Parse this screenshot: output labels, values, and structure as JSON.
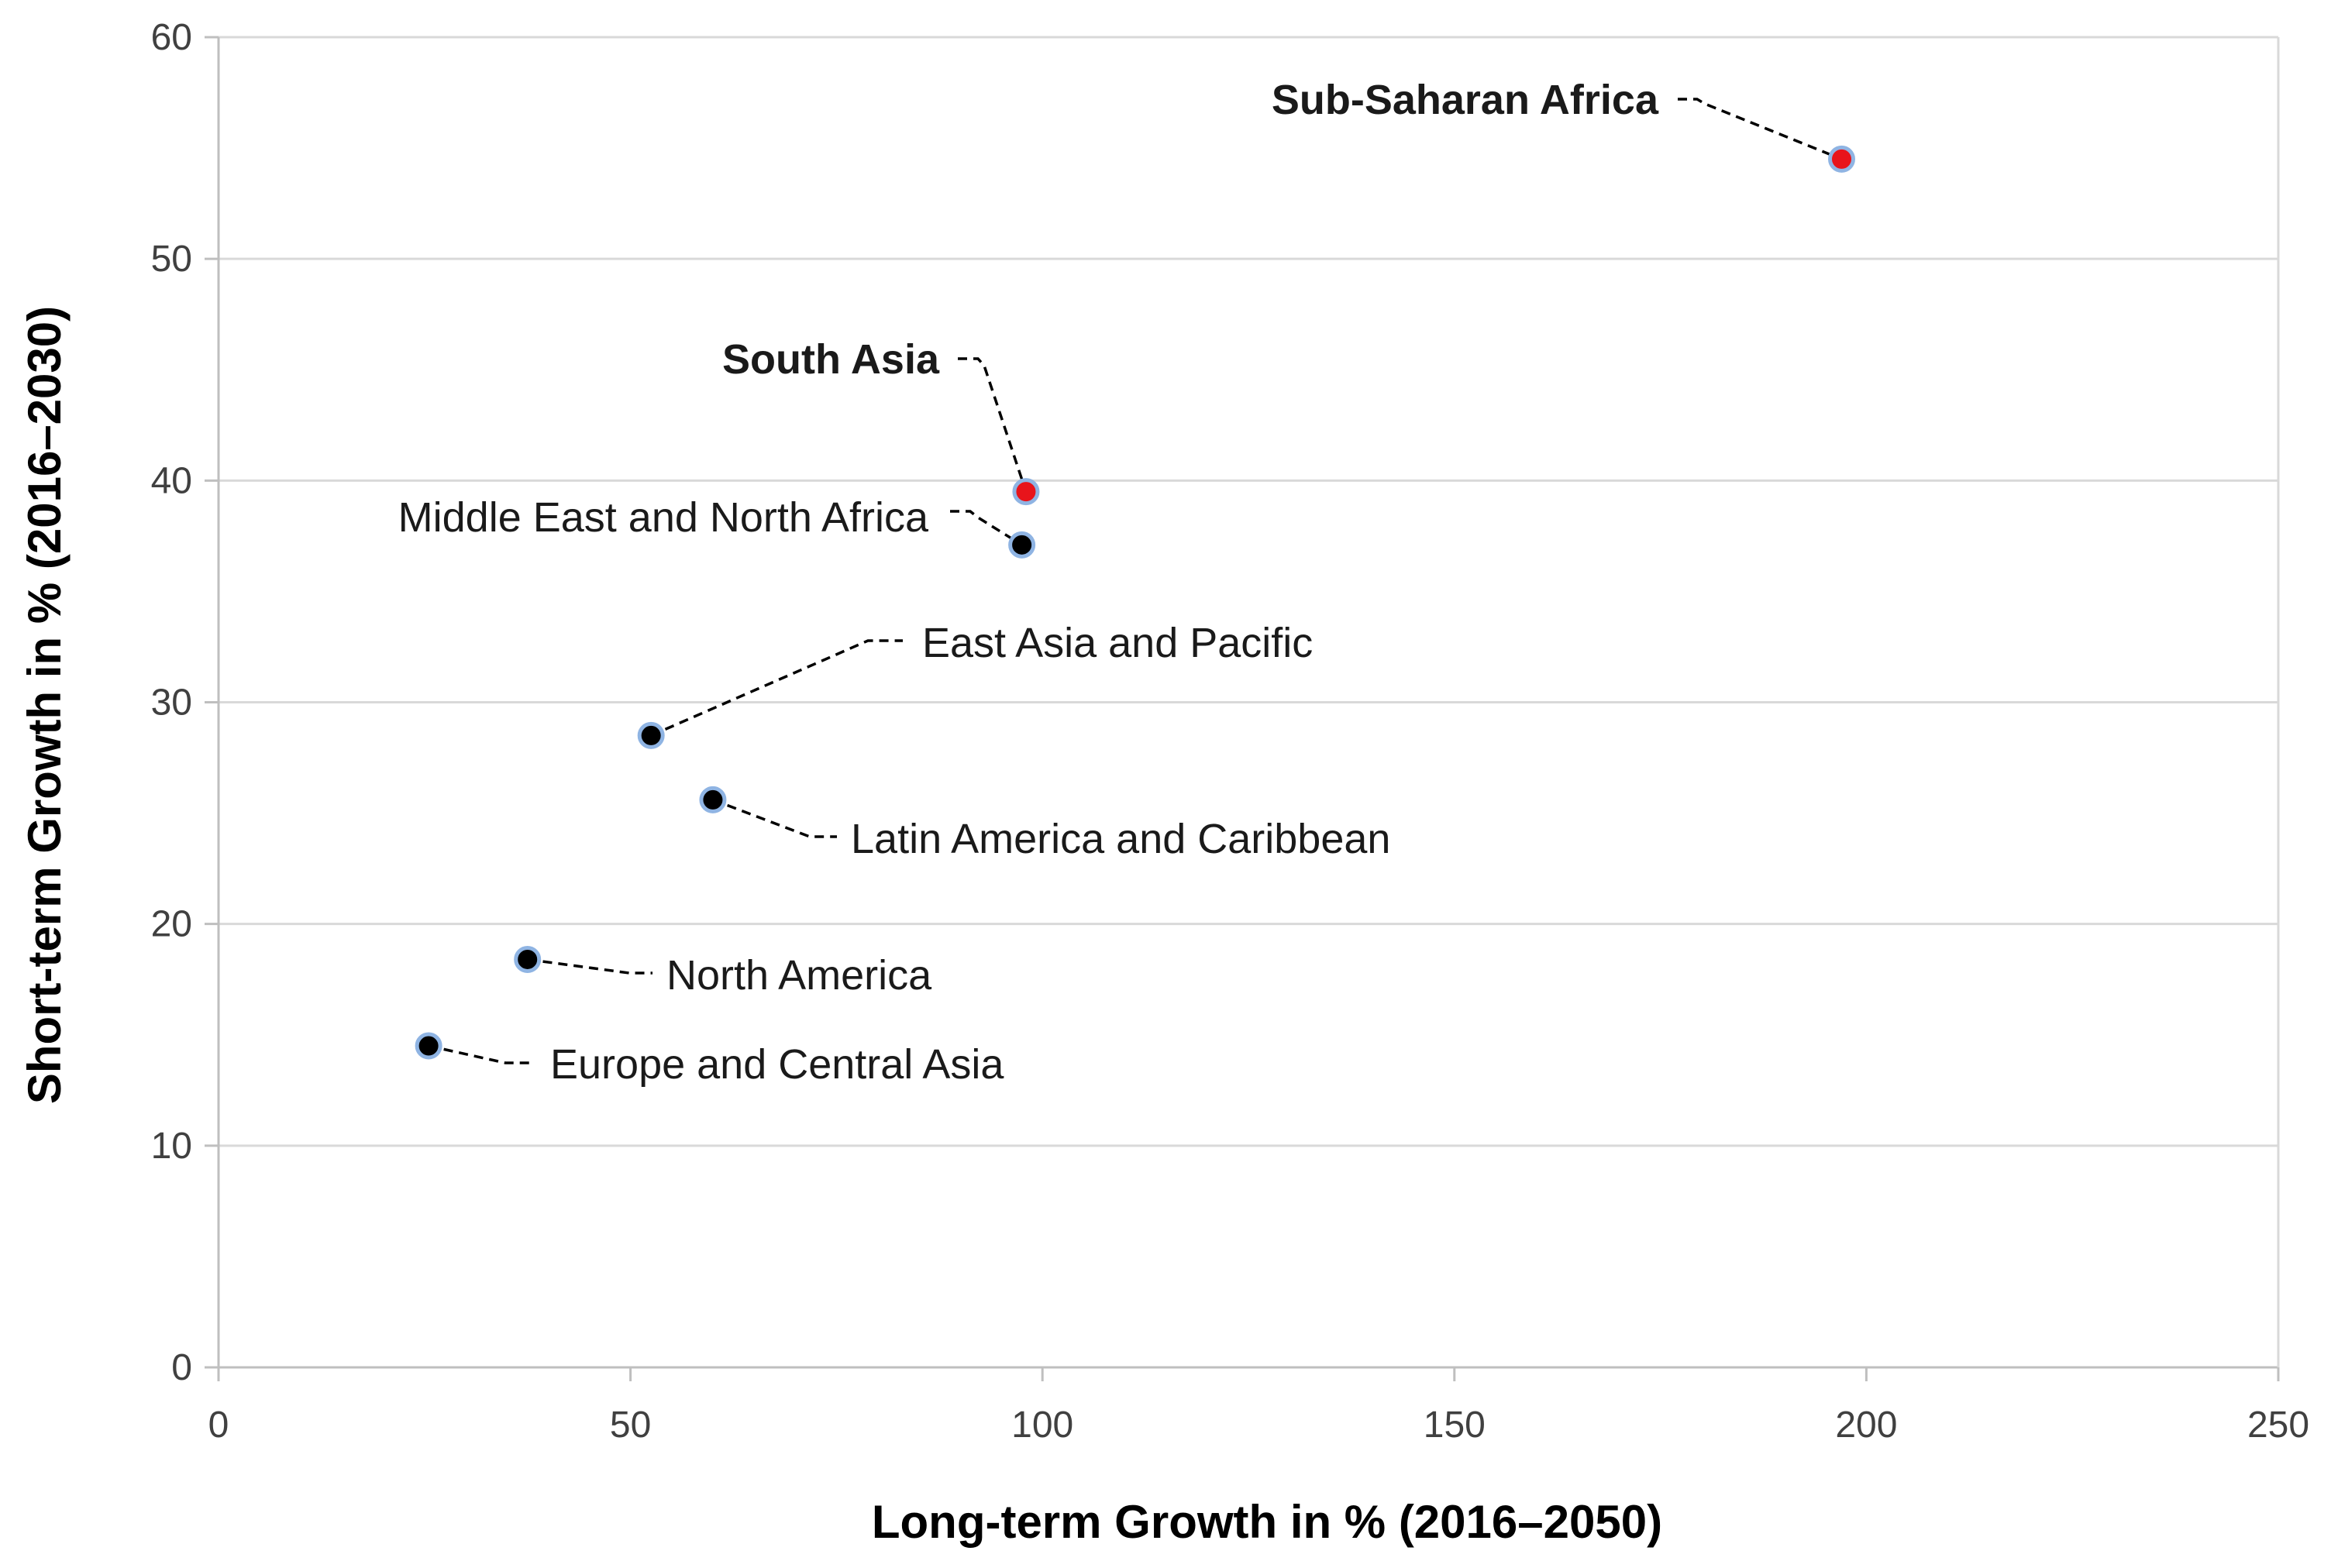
{
  "chart_data": {
    "type": "scatter",
    "title": "",
    "xlabel": "Long-term Growth in % (2016–2050)",
    "ylabel": "Short-term Growth in % (2016–2030)",
    "xlim": [
      0,
      250
    ],
    "ylim": [
      0,
      60
    ],
    "x_ticks": [
      0,
      50,
      100,
      150,
      200,
      250
    ],
    "y_ticks": [
      0,
      10,
      20,
      30,
      40,
      50,
      60
    ],
    "grid": "horizontal",
    "colors": {
      "highlight": "#e8141b",
      "default": "#000000",
      "marker_edge": "#8fb4e3"
    },
    "points": [
      {
        "name": "Sub-Saharan Africa",
        "x": 197,
        "y": 54.5,
        "highlight": true,
        "bold": true
      },
      {
        "name": "South Asia",
        "x": 98,
        "y": 39.5,
        "highlight": true,
        "bold": true
      },
      {
        "name": "Middle East and North Africa",
        "x": 97.5,
        "y": 37.1,
        "highlight": false,
        "bold": false
      },
      {
        "name": "East Asia and Pacific",
        "x": 52.5,
        "y": 28.5,
        "highlight": false,
        "bold": false
      },
      {
        "name": "Latin America and Caribbean",
        "x": 60,
        "y": 25.6,
        "highlight": false,
        "bold": false
      },
      {
        "name": "North America",
        "x": 37.5,
        "y": 18.4,
        "highlight": false,
        "bold": false
      },
      {
        "name": "Europe and Central Asia",
        "x": 25.5,
        "y": 14.5,
        "highlight": false,
        "bold": false
      }
    ]
  }
}
